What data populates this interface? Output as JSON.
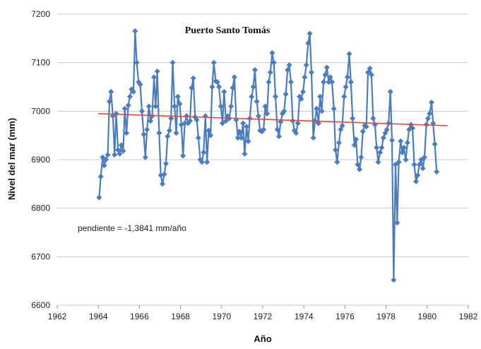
{
  "chart_data": {
    "type": "line",
    "title": "Puerto Santo Tomás",
    "xlabel": "Año",
    "ylabel": "Nivel del mar (mm)",
    "annotation": "pendiente = -1,3841 mm/año",
    "xlim": [
      1962,
      1982
    ],
    "ylim": [
      6600,
      7200
    ],
    "x_ticks": [
      1962,
      1964,
      1966,
      1968,
      1970,
      1972,
      1974,
      1976,
      1978,
      1980,
      1982
    ],
    "y_ticks": [
      6600,
      6700,
      6800,
      6900,
      7000,
      7100,
      7200
    ],
    "grid": "horizontal",
    "legend": "none",
    "colors": {
      "series": "#4a7cc0",
      "trend": "#e8463f",
      "grid": "#c8c8c8"
    },
    "series": [
      {
        "points": [
          [
            1964.04,
            6822
          ],
          [
            1964.12,
            6865
          ],
          [
            1964.21,
            6905
          ],
          [
            1964.29,
            6888
          ],
          [
            1964.37,
            6900
          ],
          [
            1964.46,
            6910
          ],
          [
            1964.54,
            7020
          ],
          [
            1964.62,
            7040
          ],
          [
            1964.71,
            6990
          ],
          [
            1964.79,
            6910
          ],
          [
            1964.87,
            6995
          ],
          [
            1964.96,
            6920
          ],
          [
            1965.04,
            6912
          ],
          [
            1965.12,
            6930
          ],
          [
            1965.21,
            6918
          ],
          [
            1965.29,
            7005
          ],
          [
            1965.37,
            6955
          ],
          [
            1965.46,
            7012
          ],
          [
            1965.54,
            7030
          ],
          [
            1965.62,
            7045
          ],
          [
            1965.71,
            7040
          ],
          [
            1965.79,
            7165
          ],
          [
            1965.87,
            7100
          ],
          [
            1965.96,
            7060
          ],
          [
            1966.04,
            7055
          ],
          [
            1966.12,
            7000
          ],
          [
            1966.21,
            6952
          ],
          [
            1966.29,
            6905
          ],
          [
            1966.37,
            6962
          ],
          [
            1966.46,
            7010
          ],
          [
            1966.54,
            6980
          ],
          [
            1966.62,
            6990
          ],
          [
            1966.71,
            7070
          ],
          [
            1966.79,
            7010
          ],
          [
            1966.87,
            7082
          ],
          [
            1966.96,
            6955
          ],
          [
            1967.04,
            6868
          ],
          [
            1967.12,
            6850
          ],
          [
            1967.21,
            6870
          ],
          [
            1967.29,
            6892
          ],
          [
            1967.37,
            6948
          ],
          [
            1967.46,
            6960
          ],
          [
            1967.54,
            6985
          ],
          [
            1967.62,
            7100
          ],
          [
            1967.71,
            7010
          ],
          [
            1967.79,
            6955
          ],
          [
            1967.87,
            7030
          ],
          [
            1967.96,
            7015
          ],
          [
            1968.04,
            6972
          ],
          [
            1968.12,
            6908
          ],
          [
            1968.21,
            6975
          ],
          [
            1968.29,
            6990
          ],
          [
            1968.37,
            6975
          ],
          [
            1968.46,
            6980
          ],
          [
            1968.54,
            7048
          ],
          [
            1968.62,
            7068
          ],
          [
            1968.71,
            6988
          ],
          [
            1968.79,
            6982
          ],
          [
            1968.87,
            6945
          ],
          [
            1968.96,
            6900
          ],
          [
            1969.04,
            6895
          ],
          [
            1969.12,
            6915
          ],
          [
            1969.21,
            6990
          ],
          [
            1969.29,
            6895
          ],
          [
            1969.37,
            6960
          ],
          [
            1969.46,
            6950
          ],
          [
            1969.54,
            7050
          ],
          [
            1969.62,
            7100
          ],
          [
            1969.71,
            7062
          ],
          [
            1969.79,
            7060
          ],
          [
            1969.87,
            7050
          ],
          [
            1969.96,
            7010
          ],
          [
            1970.04,
            6975
          ],
          [
            1970.12,
            7040
          ],
          [
            1970.21,
            6980
          ],
          [
            1970.29,
            6990
          ],
          [
            1970.37,
            6985
          ],
          [
            1970.46,
            7010
          ],
          [
            1970.54,
            7048
          ],
          [
            1970.62,
            7070
          ],
          [
            1970.71,
            6982
          ],
          [
            1970.79,
            6945
          ],
          [
            1970.87,
            6958
          ],
          [
            1970.96,
            6945
          ],
          [
            1971.04,
            6975
          ],
          [
            1971.12,
            6912
          ],
          [
            1971.21,
            6968
          ],
          [
            1971.29,
            6938
          ],
          [
            1971.37,
            6985
          ],
          [
            1971.46,
            7030
          ],
          [
            1971.54,
            7050
          ],
          [
            1971.62,
            7085
          ],
          [
            1971.71,
            7020
          ],
          [
            1971.79,
            6990
          ],
          [
            1971.87,
            6960
          ],
          [
            1971.96,
            6958
          ],
          [
            1972.04,
            6962
          ],
          [
            1972.12,
            7010
          ],
          [
            1972.21,
            6995
          ],
          [
            1972.29,
            7060
          ],
          [
            1972.37,
            7080
          ],
          [
            1972.46,
            7120
          ],
          [
            1972.54,
            7100
          ],
          [
            1972.62,
            7030
          ],
          [
            1972.71,
            6962
          ],
          [
            1972.79,
            6948
          ],
          [
            1972.87,
            6978
          ],
          [
            1972.96,
            6995
          ],
          [
            1973.04,
            7000
          ],
          [
            1973.12,
            7035
          ],
          [
            1973.21,
            7085
          ],
          [
            1973.29,
            7095
          ],
          [
            1973.37,
            7060
          ],
          [
            1973.46,
            6980
          ],
          [
            1973.54,
            6960
          ],
          [
            1973.62,
            6955
          ],
          [
            1973.71,
            6975
          ],
          [
            1973.79,
            7030
          ],
          [
            1973.87,
            7025
          ],
          [
            1973.96,
            7040
          ],
          [
            1974.04,
            7070
          ],
          [
            1974.12,
            7095
          ],
          [
            1974.21,
            7140
          ],
          [
            1974.29,
            7160
          ],
          [
            1974.37,
            7080
          ],
          [
            1974.46,
            6945
          ],
          [
            1974.54,
            6980
          ],
          [
            1974.62,
            7005
          ],
          [
            1974.71,
            6975
          ],
          [
            1974.79,
            7030
          ],
          [
            1974.87,
            7000
          ],
          [
            1974.96,
            7060
          ],
          [
            1975.04,
            7075
          ],
          [
            1975.12,
            7090
          ],
          [
            1975.21,
            7060
          ],
          [
            1975.29,
            7070
          ],
          [
            1975.37,
            7060
          ],
          [
            1975.46,
            7005
          ],
          [
            1975.54,
            6920
          ],
          [
            1975.62,
            6895
          ],
          [
            1975.71,
            6935
          ],
          [
            1975.79,
            6962
          ],
          [
            1975.87,
            6970
          ],
          [
            1975.96,
            7030
          ],
          [
            1976.04,
            7050
          ],
          [
            1976.12,
            7070
          ],
          [
            1976.21,
            7118
          ],
          [
            1976.29,
            7060
          ],
          [
            1976.37,
            6985
          ],
          [
            1976.46,
            6930
          ],
          [
            1976.54,
            6942
          ],
          [
            1976.62,
            6890
          ],
          [
            1976.71,
            6880
          ],
          [
            1976.79,
            6905
          ],
          [
            1976.87,
            6958
          ],
          [
            1976.96,
            6970
          ],
          [
            1977.04,
            6968
          ],
          [
            1977.12,
            7080
          ],
          [
            1977.21,
            7088
          ],
          [
            1977.29,
            7075
          ],
          [
            1977.37,
            6985
          ],
          [
            1977.46,
            6972
          ],
          [
            1977.54,
            6925
          ],
          [
            1977.62,
            6895
          ],
          [
            1977.71,
            6915
          ],
          [
            1977.79,
            6925
          ],
          [
            1977.87,
            6945
          ],
          [
            1977.96,
            6955
          ],
          [
            1978.04,
            6962
          ],
          [
            1978.12,
            6975
          ],
          [
            1978.21,
            7040
          ],
          [
            1978.29,
            6940
          ],
          [
            1978.37,
            6652
          ],
          [
            1978.46,
            6890
          ],
          [
            1978.54,
            6770
          ],
          [
            1978.62,
            6895
          ],
          [
            1978.71,
            6938
          ],
          [
            1978.79,
            6915
          ],
          [
            1978.87,
            6925
          ],
          [
            1978.96,
            6900
          ],
          [
            1979.04,
            6935
          ],
          [
            1979.12,
            6962
          ],
          [
            1979.21,
            6972
          ],
          [
            1979.29,
            6965
          ],
          [
            1979.37,
            6890
          ],
          [
            1979.46,
            6855
          ],
          [
            1979.54,
            6868
          ],
          [
            1979.62,
            6890
          ],
          [
            1979.71,
            6900
          ],
          [
            1979.79,
            6882
          ],
          [
            1979.87,
            6905
          ],
          [
            1979.96,
            6972
          ],
          [
            1980.04,
            6985
          ],
          [
            1980.12,
            6995
          ],
          [
            1980.21,
            7018
          ],
          [
            1980.29,
            6975
          ],
          [
            1980.37,
            6932
          ],
          [
            1980.46,
            6875
          ]
        ]
      },
      {
        "kind": "trend",
        "points": [
          [
            1964,
            6995
          ],
          [
            1981,
            6970
          ]
        ]
      }
    ]
  }
}
